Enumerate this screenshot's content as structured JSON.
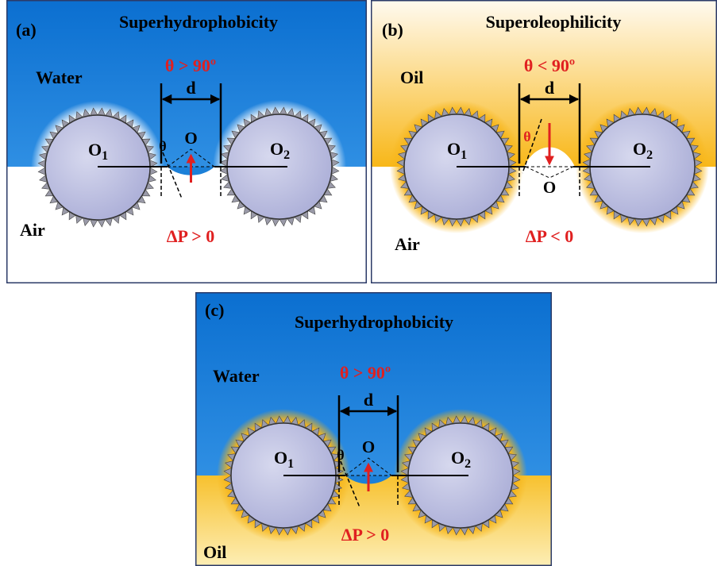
{
  "panels": [
    {
      "label": "(a)",
      "title": "Superhydrophobicity",
      "top_medium": "Water",
      "bottom_medium": "Air",
      "angle_condition": "θ > 90º",
      "distance": "d",
      "pressure": "ΔP > 0",
      "angle_symbol": "θ",
      "center": "O",
      "sphere_1": {
        "base": "O",
        "sub": "1"
      },
      "sphere_2": {
        "base": "O",
        "sub": "2"
      }
    },
    {
      "label": "(b)",
      "title": "Superoleophilicity",
      "top_medium": "Oil",
      "bottom_medium": "Air",
      "angle_condition": "θ < 90º",
      "distance": "d",
      "pressure": "ΔP < 0",
      "angle_symbol": "θ",
      "center": "O",
      "sphere_1": {
        "base": "O",
        "sub": "1"
      },
      "sphere_2": {
        "base": "O",
        "sub": "2"
      }
    },
    {
      "label": "(c)",
      "title": "Superhydrophobicity",
      "top_medium": "Water",
      "bottom_medium": "Oil",
      "angle_condition": "θ > 90º",
      "distance": "d",
      "pressure": "ΔP > 0",
      "angle_symbol": "θ",
      "center": "O",
      "sphere_1": {
        "base": "O",
        "sub": "1"
      },
      "sphere_2": {
        "base": "O",
        "sub": "2"
      }
    }
  ]
}
